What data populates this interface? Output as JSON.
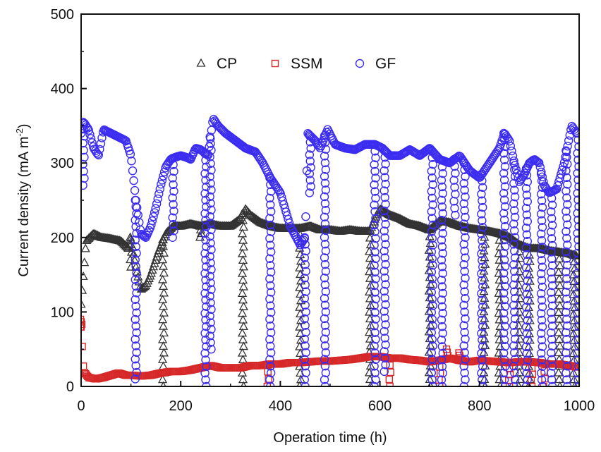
{
  "chart_data": {
    "type": "scatter",
    "xlabel": "Operation time (h)",
    "ylabel_main": "Current density (mA m",
    "ylabel_sup": "-2",
    "ylabel_close": ")",
    "xlim": [
      0,
      1000
    ],
    "ylim": [
      0,
      500
    ],
    "x_ticks": [
      "0",
      "200",
      "400",
      "600",
      "800",
      "1000"
    ],
    "y_ticks": [
      "0",
      "100",
      "200",
      "300",
      "400",
      "500"
    ],
    "grid": false,
    "legend_position": "top-center",
    "series": [
      {
        "name": "CP",
        "marker": "triangle",
        "color": "#333333",
        "baseline": [
          [
            0,
            110
          ],
          [
            10,
            195
          ],
          [
            25,
            205
          ],
          [
            40,
            200
          ],
          [
            60,
            198
          ],
          [
            80,
            195
          ],
          [
            95,
            185
          ],
          [
            100,
            200
          ],
          [
            110,
            160
          ],
          [
            120,
            130
          ],
          [
            130,
            135
          ],
          [
            140,
            150
          ],
          [
            155,
            180
          ],
          [
            170,
            205
          ],
          [
            185,
            215
          ],
          [
            200,
            215
          ],
          [
            220,
            218
          ],
          [
            240,
            215
          ],
          [
            260,
            218
          ],
          [
            280,
            215
          ],
          [
            300,
            215
          ],
          [
            320,
            225
          ],
          [
            330,
            238
          ],
          [
            340,
            230
          ],
          [
            360,
            220
          ],
          [
            380,
            215
          ],
          [
            400,
            212
          ],
          [
            420,
            212
          ],
          [
            440,
            212
          ],
          [
            460,
            215
          ],
          [
            480,
            210
          ],
          [
            500,
            210
          ],
          [
            520,
            208
          ],
          [
            540,
            210
          ],
          [
            560,
            208
          ],
          [
            580,
            208
          ],
          [
            590,
            225
          ],
          [
            600,
            238
          ],
          [
            620,
            230
          ],
          [
            640,
            225
          ],
          [
            660,
            218
          ],
          [
            680,
            215
          ],
          [
            700,
            210
          ],
          [
            720,
            222
          ],
          [
            740,
            220
          ],
          [
            760,
            215
          ],
          [
            780,
            212
          ],
          [
            800,
            210
          ],
          [
            820,
            208
          ],
          [
            840,
            205
          ],
          [
            860,
            200
          ],
          [
            880,
            190
          ],
          [
            900,
            185
          ],
          [
            920,
            185
          ],
          [
            940,
            182
          ],
          [
            960,
            180
          ],
          [
            980,
            178
          ],
          [
            995,
            175
          ]
        ],
        "dips": [
          [
            100,
            160
          ],
          [
            165,
            0
          ],
          [
            240,
            200
          ],
          [
            325,
            0
          ],
          [
            440,
            0
          ],
          [
            580,
            0
          ],
          [
            700,
            0
          ],
          [
            810,
            0
          ],
          [
            840,
            0
          ],
          [
            880,
            0
          ],
          [
            900,
            0
          ],
          [
            960,
            0
          ],
          [
            990,
            0
          ]
        ]
      },
      {
        "name": "SSM",
        "marker": "square",
        "color": "#d62828",
        "baseline": [
          [
            0,
            80
          ],
          [
            5,
            20
          ],
          [
            15,
            12
          ],
          [
            30,
            10
          ],
          [
            45,
            12
          ],
          [
            60,
            15
          ],
          [
            75,
            18
          ],
          [
            90,
            15
          ],
          [
            100,
            15
          ],
          [
            120,
            14
          ],
          [
            140,
            15
          ],
          [
            160,
            18
          ],
          [
            180,
            20
          ],
          [
            200,
            20
          ],
          [
            220,
            22
          ],
          [
            240,
            25
          ],
          [
            260,
            28
          ],
          [
            280,
            25
          ],
          [
            300,
            25
          ],
          [
            320,
            25
          ],
          [
            340,
            28
          ],
          [
            360,
            28
          ],
          [
            380,
            30
          ],
          [
            400,
            30
          ],
          [
            420,
            32
          ],
          [
            440,
            32
          ],
          [
            460,
            33
          ],
          [
            480,
            34
          ],
          [
            500,
            34
          ],
          [
            520,
            35
          ],
          [
            540,
            36
          ],
          [
            560,
            38
          ],
          [
            580,
            40
          ],
          [
            600,
            40
          ],
          [
            620,
            38
          ],
          [
            640,
            38
          ],
          [
            660,
            36
          ],
          [
            680,
            35
          ],
          [
            700,
            33
          ],
          [
            720,
            35
          ],
          [
            740,
            38
          ],
          [
            760,
            35
          ],
          [
            780,
            33
          ],
          [
            800,
            35
          ],
          [
            820,
            34
          ],
          [
            840,
            33
          ],
          [
            860,
            32
          ],
          [
            880,
            33
          ],
          [
            900,
            33
          ],
          [
            920,
            32
          ],
          [
            940,
            30
          ],
          [
            960,
            30
          ],
          [
            980,
            28
          ],
          [
            995,
            26
          ]
        ],
        "dips": [
          [
            0,
            90
          ],
          [
            375,
            0
          ],
          [
            620,
            0
          ],
          [
            720,
            0
          ],
          [
            735,
            50
          ],
          [
            760,
            45
          ],
          [
            860,
            0
          ],
          [
            905,
            0
          ],
          [
            930,
            0
          ]
        ]
      },
      {
        "name": "GF",
        "marker": "circle",
        "color": "#3b2cf0",
        "baseline": [
          [
            0,
            340
          ],
          [
            5,
            355
          ],
          [
            15,
            345
          ],
          [
            25,
            320
          ],
          [
            35,
            310
          ],
          [
            45,
            345
          ],
          [
            60,
            340
          ],
          [
            75,
            335
          ],
          [
            90,
            330
          ],
          [
            100,
            310
          ],
          [
            110,
            250
          ],
          [
            120,
            205
          ],
          [
            130,
            200
          ],
          [
            140,
            215
          ],
          [
            150,
            240
          ],
          [
            160,
            270
          ],
          [
            170,
            295
          ],
          [
            180,
            305
          ],
          [
            190,
            308
          ],
          [
            200,
            310
          ],
          [
            210,
            308
          ],
          [
            220,
            305
          ],
          [
            230,
            320
          ],
          [
            240,
            318
          ],
          [
            255,
            310
          ],
          [
            265,
            360
          ],
          [
            275,
            350
          ],
          [
            290,
            340
          ],
          [
            310,
            330
          ],
          [
            330,
            320
          ],
          [
            350,
            315
          ],
          [
            365,
            300
          ],
          [
            380,
            280
          ],
          [
            400,
            260
          ],
          [
            420,
            215
          ],
          [
            440,
            190
          ],
          [
            450,
            200
          ],
          [
            455,
            340
          ],
          [
            470,
            330
          ],
          [
            480,
            320
          ],
          [
            495,
            345
          ],
          [
            510,
            325
          ],
          [
            530,
            320
          ],
          [
            550,
            318
          ],
          [
            570,
            325
          ],
          [
            590,
            325
          ],
          [
            605,
            320
          ],
          [
            620,
            310
          ],
          [
            640,
            310
          ],
          [
            660,
            318
          ],
          [
            680,
            310
          ],
          [
            700,
            320
          ],
          [
            720,
            305
          ],
          [
            740,
            300
          ],
          [
            760,
            310
          ],
          [
            780,
            290
          ],
          [
            800,
            280
          ],
          [
            820,
            300
          ],
          [
            840,
            320
          ],
          [
            850,
            340
          ],
          [
            860,
            330
          ],
          [
            870,
            300
          ],
          [
            880,
            275
          ],
          [
            890,
            285
          ],
          [
            900,
            300
          ],
          [
            910,
            305
          ],
          [
            920,
            300
          ],
          [
            930,
            270
          ],
          [
            940,
            260
          ],
          [
            955,
            265
          ],
          [
            970,
            300
          ],
          [
            985,
            350
          ],
          [
            995,
            340
          ]
        ],
        "dips": [
          [
            5,
            270
          ],
          [
            110,
            10
          ],
          [
            185,
            200
          ],
          [
            250,
            0
          ],
          [
            260,
            50
          ],
          [
            380,
            0
          ],
          [
            450,
            0
          ],
          [
            460,
            260
          ],
          [
            490,
            0
          ],
          [
            590,
            0
          ],
          [
            610,
            20
          ],
          [
            705,
            0
          ],
          [
            725,
            0
          ],
          [
            750,
            230
          ],
          [
            770,
            0
          ],
          [
            805,
            0
          ],
          [
            850,
            0
          ],
          [
            870,
            0
          ],
          [
            895,
            0
          ],
          [
            925,
            0
          ],
          [
            945,
            0
          ],
          [
            975,
            0
          ],
          [
            998,
            0
          ]
        ]
      }
    ]
  }
}
